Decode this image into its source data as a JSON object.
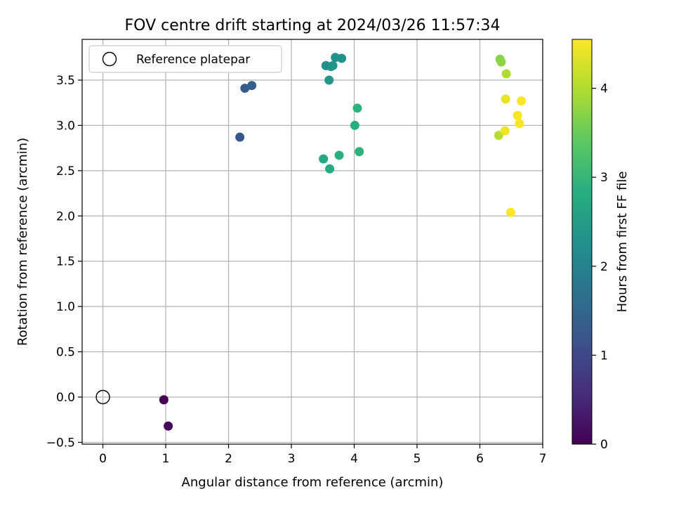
{
  "chart_data": {
    "type": "scatter",
    "title": "FOV centre drift starting at 2024/03/26 11:57:34",
    "xlabel": "Angular distance from reference (arcmin)",
    "ylabel": "Rotation from reference (arcmin)",
    "xlim": [
      -0.33,
      7.0
    ],
    "ylim": [
      -0.52,
      3.95
    ],
    "x_ticks": [
      "0",
      "1",
      "2",
      "3",
      "4",
      "5",
      "6",
      "7"
    ],
    "y_ticks": [
      "−0.5",
      "0.0",
      "0.5",
      "1.0",
      "1.5",
      "2.0",
      "2.5",
      "3.0",
      "3.5"
    ],
    "grid": true,
    "legend": {
      "placement": "top-left",
      "entries": [
        "Reference platepar"
      ]
    },
    "reference": {
      "x": 0,
      "y": 0
    },
    "colorbar": {
      "label": "Hours from first FF file",
      "range": [
        0,
        4.55
      ],
      "ticks": [
        "0",
        "1",
        "2",
        "3",
        "4"
      ],
      "colormap": "viridis"
    },
    "points": [
      {
        "x": 0.97,
        "y": -0.03,
        "c": 0.0
      },
      {
        "x": 1.04,
        "y": -0.32,
        "c": 0.1
      },
      {
        "x": 2.18,
        "y": 2.87,
        "c": 1.2
      },
      {
        "x": 2.26,
        "y": 3.41,
        "c": 1.3
      },
      {
        "x": 2.37,
        "y": 3.44,
        "c": 1.35
      },
      {
        "x": 3.55,
        "y": 3.66,
        "c": 2.2
      },
      {
        "x": 3.63,
        "y": 3.65,
        "c": 2.25
      },
      {
        "x": 3.7,
        "y": 3.75,
        "c": 2.3
      },
      {
        "x": 3.8,
        "y": 3.74,
        "c": 2.3
      },
      {
        "x": 3.66,
        "y": 3.66,
        "c": 2.35
      },
      {
        "x": 3.6,
        "y": 3.5,
        "c": 2.4
      },
      {
        "x": 3.51,
        "y": 2.63,
        "c": 2.7
      },
      {
        "x": 3.61,
        "y": 2.52,
        "c": 2.75
      },
      {
        "x": 3.76,
        "y": 2.67,
        "c": 2.85
      },
      {
        "x": 4.01,
        "y": 3.0,
        "c": 2.8
      },
      {
        "x": 4.05,
        "y": 3.19,
        "c": 2.9
      },
      {
        "x": 4.08,
        "y": 2.71,
        "c": 2.9
      },
      {
        "x": 6.32,
        "y": 3.73,
        "c": 3.7
      },
      {
        "x": 6.34,
        "y": 3.7,
        "c": 3.75
      },
      {
        "x": 6.42,
        "y": 3.57,
        "c": 4.0
      },
      {
        "x": 6.3,
        "y": 2.89,
        "c": 4.05
      },
      {
        "x": 6.41,
        "y": 3.29,
        "c": 4.4
      },
      {
        "x": 6.4,
        "y": 2.94,
        "c": 4.45
      },
      {
        "x": 6.6,
        "y": 3.11,
        "c": 4.5
      },
      {
        "x": 6.63,
        "y": 3.02,
        "c": 4.5
      },
      {
        "x": 6.66,
        "y": 3.27,
        "c": 4.55
      },
      {
        "x": 6.49,
        "y": 2.04,
        "c": 4.55
      }
    ]
  }
}
